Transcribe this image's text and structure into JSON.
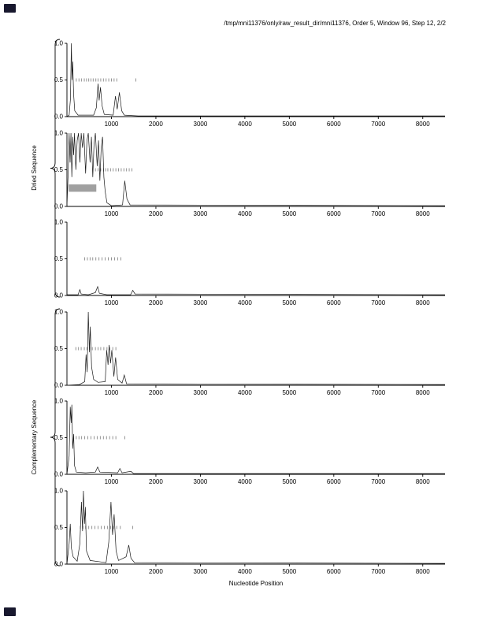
{
  "title": "/tmp/mni11376/only/raw_result_dir/mni11376, Order 5, Window 96, Step 12, 2/2",
  "xlabel": "Nucleotide Position",
  "group_labels": {
    "top": "Dried Sequence",
    "bottom": "Complementary Sequence"
  },
  "colors": {
    "line": "#1a1a1a",
    "axis": "#000000",
    "marker": "#888888",
    "band": "#a0a0a0"
  },
  "chart_data": {
    "type": "line",
    "title": "/tmp/mni11376/only/raw_result_dir/mni11376, Order 5, Window 96, Step 12, 2/2",
    "xlabel": "Nucleotide Position",
    "xlim": [
      0,
      8500
    ],
    "xticks": [
      1000,
      2000,
      3000,
      4000,
      5000,
      6000,
      7000,
      8000
    ],
    "ylim": [
      0,
      1
    ],
    "yticks": [
      0,
      0.5,
      1
    ],
    "ytick_labels": [
      "0.0",
      "0.5",
      "1.0"
    ],
    "grid": false,
    "legend": false,
    "panels": [
      {
        "name": "dried-panel-1",
        "group": "Dried Sequence",
        "line": [
          [
            0,
            0
          ],
          [
            50,
            0.02
          ],
          [
            80,
            0.25
          ],
          [
            100,
            1.0
          ],
          [
            115,
            0.5
          ],
          [
            130,
            0.75
          ],
          [
            150,
            0.3
          ],
          [
            175,
            0.08
          ],
          [
            250,
            0.02
          ],
          [
            600,
            0.02
          ],
          [
            660,
            0.12
          ],
          [
            700,
            0.45
          ],
          [
            725,
            0.22
          ],
          [
            755,
            0.4
          ],
          [
            790,
            0.15
          ],
          [
            840,
            0.03
          ],
          [
            1040,
            0.02
          ],
          [
            1090,
            0.28
          ],
          [
            1130,
            0.1
          ],
          [
            1180,
            0.33
          ],
          [
            1230,
            0.08
          ],
          [
            1290,
            0.02
          ],
          [
            1600,
            0.01
          ],
          [
            8500,
            0.01
          ]
        ],
        "marker_y": 0.5,
        "markers": [
          210,
          270,
          330,
          390,
          440,
          490,
          540,
          590,
          650,
          700,
          760,
          820,
          880,
          940,
          1000,
          1060,
          1120,
          1550
        ]
      },
      {
        "name": "dried-panel-2",
        "group": "Dried Sequence",
        "line": [
          [
            0,
            0
          ],
          [
            30,
            0.5
          ],
          [
            50,
            1.0
          ],
          [
            70,
            0.6
          ],
          [
            90,
            1.0
          ],
          [
            110,
            0.4
          ],
          [
            130,
            0.95
          ],
          [
            150,
            0.7
          ],
          [
            170,
            1.0
          ],
          [
            200,
            0.5
          ],
          [
            230,
            0.9
          ],
          [
            260,
            1.0
          ],
          [
            290,
            0.6
          ],
          [
            320,
            1.0
          ],
          [
            350,
            0.8
          ],
          [
            380,
            1.0
          ],
          [
            420,
            0.45
          ],
          [
            450,
            0.9
          ],
          [
            480,
            1.0
          ],
          [
            520,
            0.6
          ],
          [
            550,
            0.95
          ],
          [
            580,
            0.4
          ],
          [
            610,
            0.85
          ],
          [
            640,
            1.0
          ],
          [
            680,
            0.55
          ],
          [
            710,
            0.9
          ],
          [
            740,
            0.35
          ],
          [
            770,
            0.8
          ],
          [
            800,
            0.95
          ],
          [
            830,
            0.4
          ],
          [
            860,
            0.2
          ],
          [
            900,
            0.05
          ],
          [
            1000,
            0.01
          ],
          [
            1250,
            0.02
          ],
          [
            1300,
            0.35
          ],
          [
            1350,
            0.1
          ],
          [
            1420,
            0.02
          ],
          [
            8500,
            0.01
          ]
        ],
        "marker_y": 0.5,
        "markers": [
          640,
          700,
          760,
          820,
          870,
          920,
          980,
          1040,
          1100,
          1160,
          1220,
          1280,
          1340,
          1400,
          1460
        ],
        "band": {
          "x1": 40,
          "x2": 660,
          "y_low": 0.2,
          "y_high": 0.3
        }
      },
      {
        "name": "dried-panel-3",
        "group": "Dried Sequence",
        "line": [
          [
            0,
            0.01
          ],
          [
            250,
            0.01
          ],
          [
            290,
            0.08
          ],
          [
            320,
            0.02
          ],
          [
            480,
            0.01
          ],
          [
            640,
            0.04
          ],
          [
            690,
            0.12
          ],
          [
            730,
            0.03
          ],
          [
            900,
            0.01
          ],
          [
            1430,
            0.01
          ],
          [
            1480,
            0.07
          ],
          [
            1530,
            0.02
          ],
          [
            8500,
            0.01
          ]
        ],
        "marker_y": 0.5,
        "markers": [
          400,
          460,
          520,
          580,
          650,
          720,
          790,
          860,
          930,
          1000,
          1070,
          1140,
          1210
        ]
      },
      {
        "name": "complementary-panel-1",
        "group": "Complementary Sequence",
        "line": [
          [
            0,
            0
          ],
          [
            280,
            0.01
          ],
          [
            400,
            0.05
          ],
          [
            430,
            0.42
          ],
          [
            455,
            0.18
          ],
          [
            480,
            1.0
          ],
          [
            505,
            0.45
          ],
          [
            525,
            0.8
          ],
          [
            555,
            0.25
          ],
          [
            600,
            0.08
          ],
          [
            700,
            0.04
          ],
          [
            860,
            0.05
          ],
          [
            895,
            0.48
          ],
          [
            925,
            0.28
          ],
          [
            950,
            0.55
          ],
          [
            980,
            0.3
          ],
          [
            1010,
            0.48
          ],
          [
            1055,
            0.12
          ],
          [
            1095,
            0.38
          ],
          [
            1140,
            0.08
          ],
          [
            1240,
            0.03
          ],
          [
            1290,
            0.14
          ],
          [
            1340,
            0.02
          ],
          [
            8500,
            0.01
          ]
        ],
        "marker_y": 0.5,
        "markers": [
          200,
          260,
          320,
          390,
          450,
          510,
          570,
          640,
          700,
          760,
          830,
          900,
          960,
          1030,
          1100
        ]
      },
      {
        "name": "complementary-panel-2",
        "group": "Complementary Sequence",
        "line": [
          [
            0,
            0
          ],
          [
            50,
            0.25
          ],
          [
            75,
            0.92
          ],
          [
            95,
            0.7
          ],
          [
            110,
            0.95
          ],
          [
            130,
            0.35
          ],
          [
            150,
            0.55
          ],
          [
            170,
            0.12
          ],
          [
            210,
            0.03
          ],
          [
            420,
            0.02
          ],
          [
            640,
            0.03
          ],
          [
            690,
            0.1
          ],
          [
            740,
            0.03
          ],
          [
            1140,
            0.02
          ],
          [
            1190,
            0.08
          ],
          [
            1240,
            0.02
          ],
          [
            1440,
            0.04
          ],
          [
            1500,
            0.01
          ],
          [
            8500,
            0.01
          ]
        ],
        "marker_y": 0.5,
        "markers": [
          210,
          270,
          330,
          400,
          470,
          540,
          610,
          680,
          750,
          820,
          890,
          960,
          1030,
          1100,
          1300
        ]
      },
      {
        "name": "complementary-panel-3",
        "group": "Complementary Sequence",
        "line": [
          [
            0,
            0
          ],
          [
            50,
            0.28
          ],
          [
            75,
            0.55
          ],
          [
            100,
            0.22
          ],
          [
            140,
            0.1
          ],
          [
            230,
            0.04
          ],
          [
            290,
            0.28
          ],
          [
            325,
            0.85
          ],
          [
            350,
            0.45
          ],
          [
            370,
            1.0
          ],
          [
            395,
            0.55
          ],
          [
            415,
            0.78
          ],
          [
            440,
            0.18
          ],
          [
            520,
            0.05
          ],
          [
            880,
            0.02
          ],
          [
            940,
            0.3
          ],
          [
            990,
            0.85
          ],
          [
            1025,
            0.4
          ],
          [
            1060,
            0.68
          ],
          [
            1105,
            0.18
          ],
          [
            1160,
            0.05
          ],
          [
            1330,
            0.1
          ],
          [
            1390,
            0.26
          ],
          [
            1440,
            0.08
          ],
          [
            1520,
            0.02
          ],
          [
            8500,
            0.01
          ]
        ],
        "marker_y": 0.5,
        "markers": [
          300,
          360,
          420,
          490,
          560,
          630,
          700,
          770,
          840,
          910,
          980,
          1050,
          1120,
          1200,
          1480
        ]
      }
    ]
  }
}
